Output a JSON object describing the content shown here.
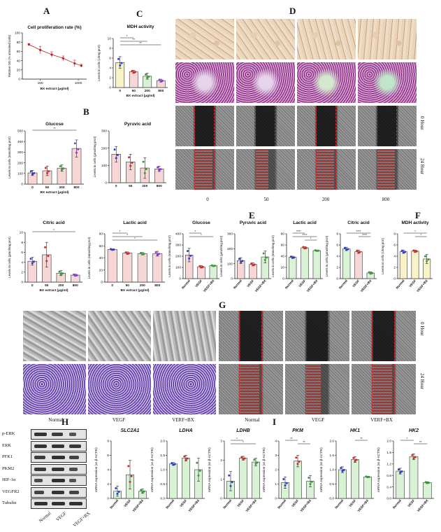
{
  "panels": {
    "A": "A",
    "B": "B",
    "C": "C",
    "D": "D",
    "E": "E",
    "F": "F",
    "G": "G",
    "H": "H",
    "I": "I"
  },
  "micro_D": {
    "col_labels": [
      "0",
      "50",
      "200",
      "800"
    ],
    "row_labels": [
      "0 Hour",
      "24 Hour"
    ]
  },
  "micro_G": {
    "col_labels_left": [
      "Normal",
      "VEGF",
      "VERF+BX"
    ],
    "col_labels_right": [
      "Normal",
      "VEGF",
      "VERF+BX"
    ],
    "row_labels": [
      "0 Hour",
      "24 Hour"
    ]
  },
  "western_blot": {
    "proteins": [
      "p-ERK",
      "ERK",
      "PFK1",
      "PKM2",
      "HIF-1α",
      "VEGFR2",
      "Tubulin"
    ],
    "lanes": [
      "Normal",
      "VEGF",
      "VEGF+BX"
    ]
  },
  "colors": {
    "bar_pink": "#f7d6d6",
    "bar_yellow": "#fbf3c8",
    "bar_green": "#d9f2d6",
    "dot_blue": "#2a3bd6",
    "dot_red": "#d42a2a",
    "dot_green": "#3a9a3a",
    "dot_purple": "#8a3ad6",
    "scratch_red": "#e02020",
    "stain_purple": "#6a2a8a",
    "tube_brown": "#c8a07a"
  },
  "chart_data": [
    {
      "id": "A",
      "type": "line",
      "title": "Cell proliferation rate (%)",
      "xlabel": "BX extract (μg/ml)",
      "ylabel": "Relative OD (% untreated cells)",
      "x": [
        50,
        100,
        200,
        400,
        800,
        1200
      ],
      "x_ticks": [
        "100",
        "1000"
      ],
      "values": [
        75,
        63,
        53,
        45,
        34,
        29
      ],
      "errors": [
        2,
        8,
        6,
        5,
        7,
        3
      ],
      "ylim": [
        0,
        100
      ],
      "y_ticks": [
        "0",
        "20",
        "40",
        "60",
        "80",
        "100"
      ]
    },
    {
      "id": "C",
      "type": "bar",
      "title": "MDH activity",
      "xlabel": "BX extract (μg/ml)",
      "ylabel": "Levels in cells (U/mg prot)",
      "categories": [
        "0",
        "50",
        "200",
        "800"
      ],
      "values": [
        5.1,
        3.2,
        2.3,
        1.4
      ],
      "errors": [
        1.2,
        0.3,
        0.6,
        0.3
      ],
      "ylim": [
        0,
        10
      ],
      "y_ticks": [
        "0",
        "2",
        "4",
        "6",
        "8",
        "10"
      ],
      "colors": [
        "#fbf3c8",
        "#f7d6d6",
        "#d9f2d6",
        "#f7d6d6"
      ],
      "dot_colors": [
        "#2a3bd6",
        "#d42a2a",
        "#3a9a3a",
        "#8a3ad6"
      ],
      "sig": [
        {
          "from": 0,
          "to": 1,
          "label": "*"
        },
        {
          "from": 0,
          "to": 2,
          "label": "**"
        },
        {
          "from": 0,
          "to": 3,
          "label": "**"
        }
      ]
    },
    {
      "id": "B1",
      "type": "bar",
      "title": "Glucose",
      "xlabel": "BX extract (μg/ml)",
      "ylabel": "Levels in cells (mmol/mg prot)",
      "categories": [
        "0",
        "50",
        "200",
        "800"
      ],
      "values": [
        105,
        125,
        150,
        335
      ],
      "errors": [
        25,
        45,
        30,
        80
      ],
      "ylim": [
        0,
        500
      ],
      "y_ticks": [
        "0",
        "100",
        "200",
        "300",
        "400",
        "500"
      ],
      "colors": [
        "#f7d6d6",
        "#f7d6d6",
        "#f7d6d6",
        "#f7d6d6"
      ],
      "dot_colors": [
        "#2a3bd6",
        "#d42a2a",
        "#3a9a3a",
        "#8a3ad6"
      ],
      "sig": [
        {
          "from": 0,
          "to": 3,
          "label": "**"
        }
      ]
    },
    {
      "id": "B2",
      "type": "bar",
      "title": "Pyruvic acid",
      "xlabel": "",
      "ylabel": "Levels in cells (μmol/mg prot)",
      "categories": [
        "0",
        "50",
        "200",
        "800"
      ],
      "values": [
        165,
        120,
        85,
        80
      ],
      "errors": [
        45,
        45,
        60,
        15
      ],
      "ylim": [
        0,
        300
      ],
      "y_ticks": [
        "0",
        "100",
        "200",
        "300"
      ],
      "colors": [
        "#f7d6d6",
        "#f7d6d6",
        "#f7d6d6",
        "#f7d6d6"
      ],
      "dot_colors": [
        "#2a3bd6",
        "#d42a2a",
        "#3a9a3a",
        "#8a3ad6"
      ],
      "sig": []
    },
    {
      "id": "B3",
      "type": "bar",
      "title": "Citric acid",
      "xlabel": "BX extract (μg/ml)",
      "ylabel": "Levels in cells (μmol/mg prot)",
      "categories": [
        "0",
        "50",
        "200",
        "800"
      ],
      "values": [
        4.2,
        5.5,
        1.8,
        1.4
      ],
      "errors": [
        0.8,
        2.5,
        0.5,
        0.2
      ],
      "ylim": [
        0,
        10
      ],
      "y_ticks": [
        "0",
        "2",
        "4",
        "6",
        "8",
        "10"
      ],
      "colors": [
        "#f7d6d6",
        "#f7d6d6",
        "#f7d6d6",
        "#f7d6d6"
      ],
      "dot_colors": [
        "#2a3bd6",
        "#d42a2a",
        "#3a9a3a",
        "#8a3ad6"
      ],
      "sig": [
        {
          "from": 0,
          "to": 3,
          "label": "*"
        }
      ]
    },
    {
      "id": "B4",
      "type": "bar",
      "title": "Lactic acid",
      "xlabel": "BX extract (μg/ml)",
      "ylabel": "Levels in cells (mmol/mg prot)",
      "categories": [
        "0",
        "50",
        "200",
        "800"
      ],
      "values": [
        54,
        48,
        47,
        47
      ],
      "errors": [
        1,
        2,
        2,
        4
      ],
      "ylim": [
        0,
        80
      ],
      "y_ticks": [
        "0",
        "20",
        "40",
        "60",
        "80"
      ],
      "colors": [
        "#f7d6d6",
        "#f7d6d6",
        "#f7d6d6",
        "#f7d6d6"
      ],
      "dot_colors": [
        "#2a3bd6",
        "#d42a2a",
        "#3a9a3a",
        "#8a3ad6"
      ],
      "sig": [
        {
          "from": 0,
          "to": 1,
          "label": "*"
        },
        {
          "from": 0,
          "to": 2,
          "label": "*"
        },
        {
          "from": 0,
          "to": 3,
          "label": "*"
        }
      ]
    },
    {
      "id": "E1",
      "type": "bar",
      "title": "Glucose",
      "xlabel": "",
      "ylabel": "Levels in cells (mmol/mg prot)",
      "categories": [
        "Normal",
        "VEGF",
        "VEGF+BX"
      ],
      "values": [
        210,
        105,
        115
      ],
      "errors": [
        60,
        10,
        5
      ],
      "ylim": [
        0,
        400
      ],
      "y_ticks": [
        "0",
        "100",
        "200",
        "300",
        "400"
      ],
      "colors": [
        "#f7d6d6",
        "#f7d6d6",
        "#d9f2d6"
      ],
      "dot_colors": [
        "#2a3bd6",
        "#d42a2a",
        "#3a9a3a"
      ],
      "sig": [
        {
          "from": 0,
          "to": 1,
          "label": "*"
        },
        {
          "from": 0,
          "to": 2,
          "label": "*"
        }
      ]
    },
    {
      "id": "E2",
      "type": "bar",
      "title": "Pyruvic acid",
      "xlabel": "",
      "ylabel": "Levels in cells (μmol/mg prot)",
      "categories": [
        "Normal",
        "VEGF",
        "VEGF+BX"
      ],
      "values": [
        120,
        95,
        145
      ],
      "errors": [
        20,
        10,
        40
      ],
      "ylim": [
        0,
        300
      ],
      "y_ticks": [
        "0",
        "100",
        "200",
        "300"
      ],
      "colors": [
        "#f7d6d6",
        "#f7d6d6",
        "#d9f2d6"
      ],
      "dot_colors": [
        "#2a3bd6",
        "#d42a2a",
        "#3a9a3a"
      ],
      "sig": []
    },
    {
      "id": "E3",
      "type": "bar",
      "title": "Lactic acid",
      "xlabel": "",
      "ylabel": "Levels in cells (mmol/mg prot)",
      "categories": [
        "Normal",
        "VEGF",
        "VEGF+BX"
      ],
      "values": [
        38,
        55,
        50
      ],
      "errors": [
        2,
        2,
        1
      ],
      "ylim": [
        0,
        80
      ],
      "y_ticks": [
        "0",
        "20",
        "40",
        "60",
        "80"
      ],
      "colors": [
        "#d9f2d6",
        "#d9f2d6",
        "#d9f2d6"
      ],
      "dot_colors": [
        "#2a3bd6",
        "#d42a2a",
        "#3a9a3a"
      ],
      "sig": [
        {
          "from": 0,
          "to": 1,
          "label": "****"
        },
        {
          "from": 0,
          "to": 2,
          "label": "****"
        },
        {
          "from": 1,
          "to": 2,
          "label": "*"
        }
      ]
    },
    {
      "id": "E4",
      "type": "bar",
      "title": "Citric acid",
      "xlabel": "",
      "ylabel": "Levels in cells (μmol/mg prot)",
      "categories": [
        "Normal",
        "VEGF",
        "VEGF+BX"
      ],
      "values": [
        5.3,
        4.8,
        1.0
      ],
      "errors": [
        0.3,
        0.3,
        0.2
      ],
      "ylim": [
        0,
        8
      ],
      "y_ticks": [
        "0",
        "2",
        "4",
        "6",
        "8"
      ],
      "colors": [
        "#d9f2d6",
        "#f7d6d6",
        "#d9f2d6"
      ],
      "dot_colors": [
        "#2a3bd6",
        "#d42a2a",
        "#3a9a3a"
      ],
      "sig": [
        {
          "from": 0,
          "to": 2,
          "label": "****"
        },
        {
          "from": 1,
          "to": 2,
          "label": "****"
        }
      ]
    },
    {
      "id": "F",
      "type": "bar",
      "title": "MDH activity",
      "xlabel": "",
      "ylabel": "Levels in cells (U/mg prot)",
      "categories": [
        "Normal",
        "VEGF",
        "VEGF+BX"
      ],
      "values": [
        4.8,
        4.9,
        3.5
      ],
      "errors": [
        0.3,
        0.2,
        0.8
      ],
      "ylim": [
        0,
        8
      ],
      "y_ticks": [
        "0",
        "2",
        "4",
        "6",
        "8"
      ],
      "colors": [
        "#fbf3c8",
        "#fbf3c8",
        "#fbf3c8"
      ],
      "dot_colors": [
        "#2a3bd6",
        "#d42a2a",
        "#3a9a3a"
      ],
      "sig": [
        {
          "from": 0,
          "to": 2,
          "label": "*"
        },
        {
          "from": 1,
          "to": 2,
          "label": "*"
        }
      ]
    },
    {
      "id": "H1",
      "type": "bar",
      "title": "SLC2A1",
      "xlabel": "",
      "ylabel": "mRNA expression (vs β-ACTIN)",
      "categories": [
        "Normal",
        "VEGF",
        "VEGF+BX"
      ],
      "values": [
        1.0,
        3.3,
        1.0
      ],
      "errors": [
        0.7,
        2.0,
        0.3
      ],
      "ylim": [
        0,
        8
      ],
      "y_ticks": [
        "0",
        "2",
        "4",
        "6",
        "8"
      ],
      "colors": [
        "#d9f2d6",
        "#d9f2d6",
        "#d9f2d6"
      ],
      "dot_colors": [
        "#2a3bd6",
        "#d42a2a",
        "#3a9a3a"
      ],
      "sig": []
    },
    {
      "id": "H2",
      "type": "bar",
      "title": "LDHA",
      "xlabel": "",
      "ylabel": "mRNA expression (vs β-ACTIN)",
      "categories": [
        "Normal",
        "VEGF",
        "VEGF+BX"
      ],
      "values": [
        1.2,
        1.4,
        1.0
      ],
      "errors": [
        0.05,
        0.1,
        0.4
      ],
      "ylim": [
        0,
        2.0
      ],
      "y_ticks": [
        "0.0",
        "0.5",
        "1.0",
        "1.5",
        "2.0"
      ],
      "colors": [
        "#d9f2d6",
        "#d9f2d6",
        "#d9f2d6"
      ],
      "dot_colors": [
        "#2a3bd6",
        "#d42a2a",
        "#3a9a3a"
      ],
      "sig": []
    },
    {
      "id": "H3",
      "type": "bar",
      "title": "LDHB",
      "xlabel": "",
      "ylabel": "mRNA expression (vs β-ACTIN)",
      "categories": [
        "Normal",
        "VEGF",
        "VEGF+BX"
      ],
      "values": [
        0.9,
        2.1,
        1.9
      ],
      "errors": [
        0.5,
        0.1,
        0.2
      ],
      "ylim": [
        0,
        3
      ],
      "y_ticks": [
        "0",
        "1",
        "2",
        "3"
      ],
      "colors": [
        "#d9f2d6",
        "#d9f2d6",
        "#d9f2d6"
      ],
      "dot_colors": [
        "#2a3bd6",
        "#d42a2a",
        "#3a9a3a"
      ],
      "sig": [
        {
          "from": 0,
          "to": 1,
          "label": "*"
        },
        {
          "from": 0,
          "to": 2,
          "label": "*"
        }
      ]
    },
    {
      "id": "I1",
      "type": "bar",
      "title": "PKM",
      "xlabel": "",
      "ylabel": "mRNA expression (vs β-ACTIN)",
      "categories": [
        "Normal",
        "VEGF",
        "VEGF+BX"
      ],
      "values": [
        1.1,
        2.6,
        1.2
      ],
      "errors": [
        0.4,
        0.4,
        0.4
      ],
      "ylim": [
        0,
        4
      ],
      "y_ticks": [
        "0",
        "1",
        "2",
        "3",
        "4"
      ],
      "colors": [
        "#d9f2d6",
        "#d9f2d6",
        "#d9f2d6"
      ],
      "dot_colors": [
        "#2a3bd6",
        "#d42a2a",
        "#3a9a3a"
      ],
      "sig": [
        {
          "from": 0,
          "to": 1,
          "label": "**"
        },
        {
          "from": 1,
          "to": 2,
          "label": "**"
        }
      ]
    },
    {
      "id": "I2",
      "type": "bar",
      "title": "HK1",
      "xlabel": "",
      "ylabel": "mRNA expression (vs β-ACTIN)",
      "categories": [
        "Normal",
        "VEGF",
        "VEGF+BX"
      ],
      "values": [
        1.0,
        1.35,
        0.75
      ],
      "errors": [
        0.1,
        0.1,
        0.02
      ],
      "ylim": [
        0,
        2.0
      ],
      "y_ticks": [
        "0.0",
        "0.5",
        "1.0",
        "1.5",
        "2.0"
      ],
      "colors": [
        "#d9f2d6",
        "#d9f2d6",
        "#d9f2d6"
      ],
      "dot_colors": [
        "#2a3bd6",
        "#d42a2a",
        "#3a9a3a"
      ],
      "sig": [
        {
          "from": 1,
          "to": 2,
          "label": "**"
        }
      ]
    },
    {
      "id": "I3",
      "type": "bar",
      "title": "HK2",
      "xlabel": "",
      "ylabel": "mRNA expression (vs β-ACTIN)",
      "categories": [
        "Normal",
        "VEGF",
        "VEGF+BX"
      ],
      "values": [
        0.95,
        1.45,
        0.55
      ],
      "errors": [
        0.1,
        0.1,
        0.03
      ],
      "ylim": [
        0,
        2.0
      ],
      "y_ticks": [
        "0.0",
        "0.4",
        "0.8",
        "1.2",
        "1.6",
        "2.0"
      ],
      "colors": [
        "#d9f2d6",
        "#d9f2d6",
        "#d9f2d6"
      ],
      "dot_colors": [
        "#2a3bd6",
        "#d42a2a",
        "#3a9a3a"
      ],
      "sig": [
        {
          "from": 0,
          "to": 1,
          "label": "*"
        },
        {
          "from": 1,
          "to": 2,
          "label": "**"
        }
      ]
    }
  ]
}
